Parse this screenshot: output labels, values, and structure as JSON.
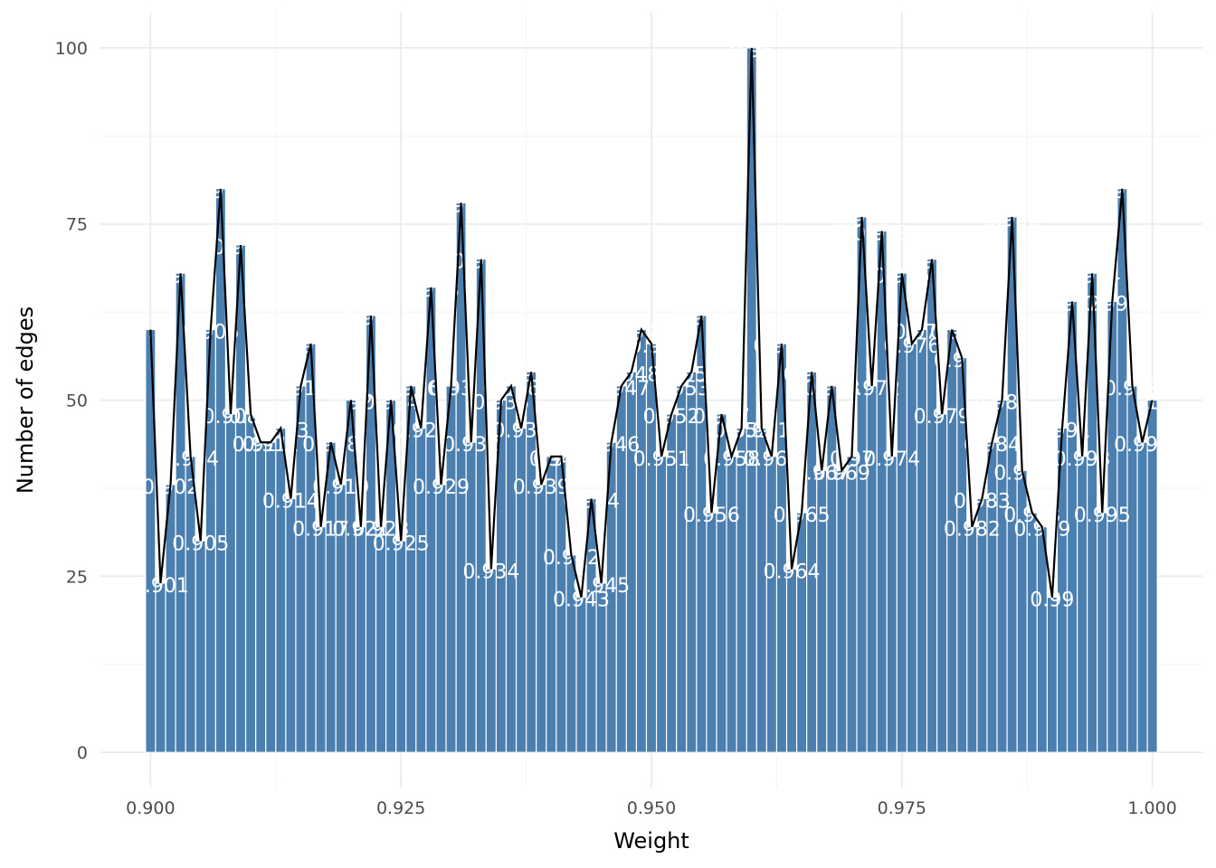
{
  "chart_data": {
    "type": "bar",
    "xlabel": "Weight",
    "ylabel": "Number of edges",
    "xlim": [
      0.895,
      1.005
    ],
    "ylim": [
      -5,
      105
    ],
    "x_ticks": [
      {
        "value": 0.9,
        "label": "0.900"
      },
      {
        "value": 0.925,
        "label": "0.925"
      },
      {
        "value": 0.95,
        "label": "0.950"
      },
      {
        "value": 0.975,
        "label": "0.975"
      },
      {
        "value": 1.0,
        "label": "1.000"
      }
    ],
    "y_ticks": [
      {
        "value": 0,
        "label": "0"
      },
      {
        "value": 25,
        "label": "25"
      },
      {
        "value": 50,
        "label": "50"
      },
      {
        "value": 75,
        "label": "75"
      },
      {
        "value": 100,
        "label": "100"
      }
    ],
    "grid": true,
    "bar_color": "#4a7fb0",
    "line_color": "#000000",
    "label_color": "#ffffff",
    "x": [
      0.9,
      0.901,
      0.902,
      0.903,
      0.904,
      0.905,
      0.906,
      0.907,
      0.908,
      0.909,
      0.91,
      0.911,
      0.912,
      0.913,
      0.914,
      0.915,
      0.916,
      0.917,
      0.918,
      0.919,
      0.92,
      0.921,
      0.922,
      0.923,
      0.924,
      0.925,
      0.926,
      0.927,
      0.928,
      0.929,
      0.93,
      0.931,
      0.932,
      0.933,
      0.934,
      0.935,
      0.936,
      0.937,
      0.938,
      0.939,
      0.94,
      0.941,
      0.942,
      0.943,
      0.944,
      0.945,
      0.946,
      0.947,
      0.948,
      0.949,
      0.95,
      0.951,
      0.952,
      0.953,
      0.954,
      0.955,
      0.956,
      0.957,
      0.958,
      0.959,
      0.96,
      0.961,
      0.962,
      0.963,
      0.964,
      0.965,
      0.966,
      0.967,
      0.968,
      0.969,
      0.97,
      0.971,
      0.972,
      0.973,
      0.974,
      0.975,
      0.976,
      0.977,
      0.978,
      0.979,
      0.98,
      0.981,
      0.982,
      0.983,
      0.984,
      0.985,
      0.986,
      0.987,
      0.988,
      0.989,
      0.99,
      0.991,
      0.992,
      0.993,
      0.994,
      0.995,
      0.996,
      0.997,
      0.998,
      0.999,
      1.0
    ],
    "values": [
      60,
      24,
      38,
      68,
      42,
      30,
      60,
      80,
      48,
      72,
      48,
      44,
      44,
      46,
      36,
      52,
      58,
      32,
      44,
      38,
      50,
      32,
      62,
      32,
      50,
      30,
      52,
      46,
      66,
      38,
      52,
      78,
      44,
      70,
      26,
      50,
      52,
      46,
      54,
      38,
      42,
      42,
      28,
      22,
      36,
      24,
      44,
      52,
      54,
      60,
      58,
      42,
      48,
      52,
      54,
      62,
      34,
      48,
      42,
      46,
      100,
      46,
      42,
      58,
      26,
      34,
      54,
      40,
      52,
      40,
      42,
      76,
      52,
      74,
      42,
      68,
      58,
      60,
      70,
      48,
      60,
      56,
      32,
      36,
      44,
      50,
      76,
      40,
      34,
      32,
      22,
      46,
      64,
      42,
      68,
      34,
      64,
      80,
      52,
      44,
      50
    ],
    "labels": [
      "0.9",
      "0.901",
      "0.902",
      "0.903",
      "0.904",
      "0.905",
      "0.906",
      "0.907",
      "0.908",
      "0.909",
      "0.91",
      "0.911",
      "0.912",
      "0.913",
      "0.914",
      "0.915",
      "0.916",
      "0.917",
      "0.918",
      "0.919",
      "0.92",
      "0.921",
      "0.922",
      "0.923",
      "0.924",
      "0.925",
      "0.926",
      "0.927",
      "0.928",
      "0.929",
      "0.93",
      "0.931",
      "0.932",
      "0.933",
      "0.934",
      "0.935",
      "0.936",
      "0.937",
      "0.938",
      "0.939",
      "0.94",
      "0.941",
      "0.942",
      "0.943",
      "0.944",
      "0.945",
      "0.946",
      "0.947",
      "0.948",
      "0.949",
      "0.95",
      "0.951",
      "0.952",
      "0.953",
      "0.954",
      "0.955",
      "0.956",
      "0.957",
      "0.958",
      "0.959",
      "0.96",
      "0.961",
      "0.962",
      "0.963",
      "0.964",
      "0.965",
      "0.966",
      "0.967",
      "0.968",
      "0.969",
      "0.97",
      "0.971",
      "0.972",
      "0.973",
      "0.974",
      "0.975",
      "0.976",
      "0.977",
      "0.978",
      "0.979",
      "0.98",
      "0.981",
      "0.982",
      "0.983",
      "0.984",
      "0.985",
      "0.986",
      "0.987",
      "0.988",
      "0.989",
      "0.99",
      "0.991",
      "0.992",
      "0.993",
      "0.994",
      "0.995",
      "0.996",
      "0.997",
      "0.998",
      "0.999",
      "1"
    ]
  }
}
